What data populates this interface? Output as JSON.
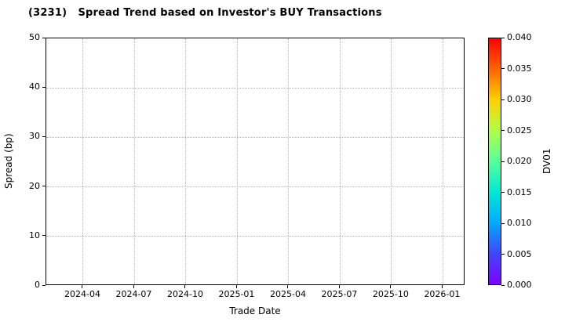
{
  "chart_data": {
    "type": "scatter",
    "title": "(3231)   Spread Trend based on Investor's BUY Transactions",
    "xlabel": "Trade Date",
    "ylabel": "Spread (bp)",
    "x_tick_labels": [
      "2024-04",
      "2024-07",
      "2024-10",
      "2025-01",
      "2025-04",
      "2025-07",
      "2025-10",
      "2026-01"
    ],
    "y_tick_labels": [
      "0",
      "10",
      "20",
      "30",
      "40",
      "50"
    ],
    "ylim": [
      0,
      50
    ],
    "grid": {
      "style": "dotted",
      "color": "#b4b4b4"
    },
    "series": [],
    "colorbar": {
      "label": "DV01",
      "range": [
        0.0,
        0.04
      ],
      "tick_labels": [
        "0.000",
        "0.005",
        "0.010",
        "0.015",
        "0.020",
        "0.025",
        "0.030",
        "0.035",
        "0.040"
      ],
      "gradient_stops": [
        "#8000ff",
        "#4146ff",
        "#00aaff",
        "#00e8d5",
        "#58ff9b",
        "#b2ff46",
        "#ffd000",
        "#ff6400",
        "#ff0000"
      ]
    }
  }
}
